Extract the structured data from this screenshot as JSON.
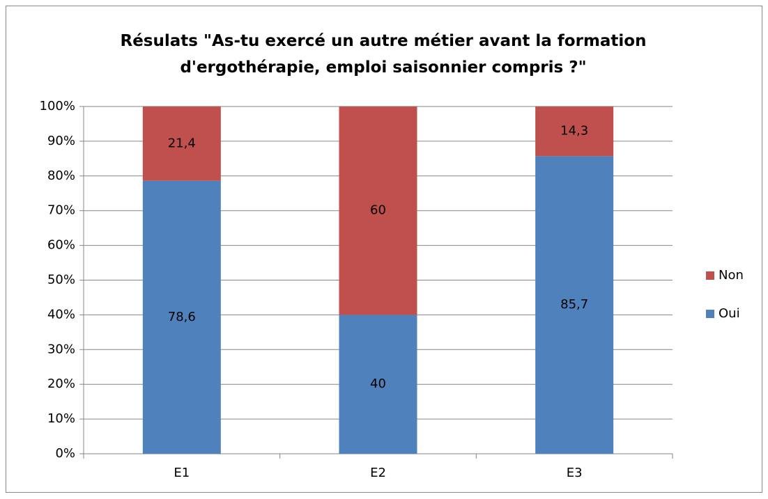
{
  "chart_data": {
    "type": "stacked_bar",
    "title": "Résulats \"As-tu exercé un autre métier avant la formation d'ergothérapie, emploi saisonnier compris ?\"",
    "categories": [
      "E1",
      "E2",
      "E3"
    ],
    "series": [
      {
        "name": "Oui",
        "color": "#4f81bd",
        "values": [
          78.6,
          40,
          85.7
        ],
        "value_labels": [
          "78,6",
          "40",
          "85,7"
        ]
      },
      {
        "name": "Non",
        "color": "#c0504d",
        "values": [
          21.4,
          60,
          14.3
        ],
        "value_labels": [
          "21,4",
          "60",
          "14,3"
        ]
      }
    ],
    "ylim": [
      0,
      100
    ],
    "yticks": [
      {
        "value": 0,
        "label": "0%"
      },
      {
        "value": 10,
        "label": "10%"
      },
      {
        "value": 20,
        "label": "20%"
      },
      {
        "value": 30,
        "label": "30%"
      },
      {
        "value": 40,
        "label": "40%"
      },
      {
        "value": 50,
        "label": "50%"
      },
      {
        "value": 60,
        "label": "60%"
      },
      {
        "value": 70,
        "label": "70%"
      },
      {
        "value": 80,
        "label": "80%"
      },
      {
        "value": 90,
        "label": "90%"
      },
      {
        "value": 100,
        "label": "100%"
      }
    ],
    "grid": true,
    "legend": "right"
  }
}
